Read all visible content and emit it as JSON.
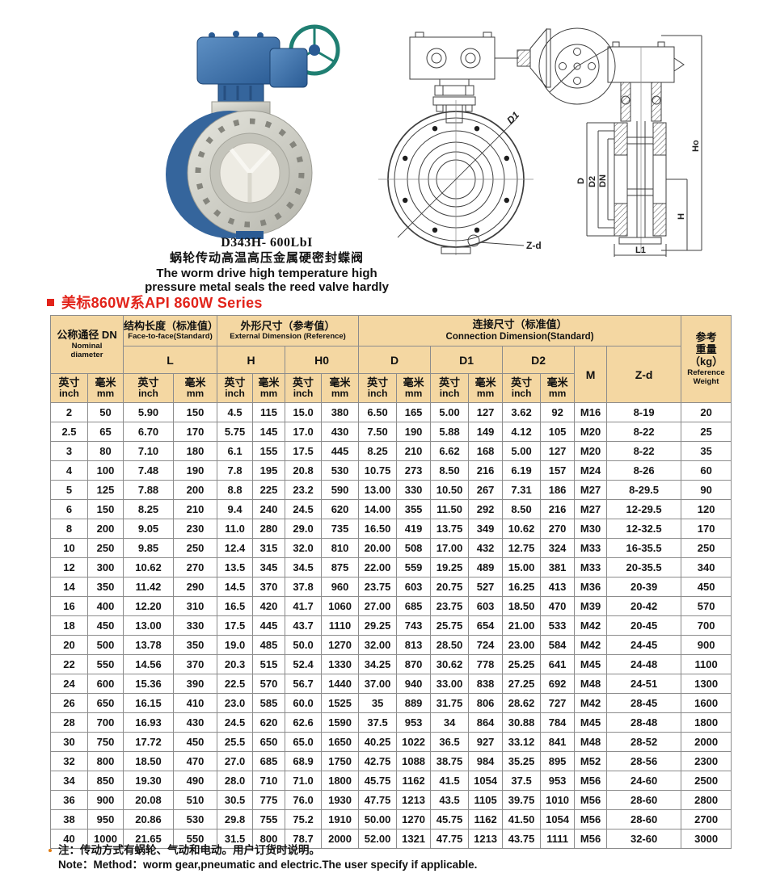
{
  "product": {
    "model": "D343H- 600LbI",
    "name_zh": "蜗轮传动高温高压金属硬密封蝶阀",
    "name_en_line1": "The worm drive high temperature high",
    "name_en_line2": "pressure metal seals the reed valve hardly"
  },
  "series": {
    "title": "美标860W系API 860W Series",
    "accent_color": "#e2231a"
  },
  "drawings": {
    "front_view_labels": {
      "d1": "D1",
      "zd": "Z-d"
    },
    "side_view_labels": {
      "d": "D",
      "d2": "D2",
      "dn": "DN",
      "ho": "Ho",
      "h": "H",
      "l1": "L1"
    }
  },
  "table": {
    "header_bg": "#f4d7a2",
    "nominal": {
      "zh": "公称通径 DN",
      "en1": "Nominal",
      "en2": "diameter"
    },
    "face_to_face": {
      "zh": "结构长度（标准值）",
      "en": "Face-to-face(Standard)"
    },
    "external": {
      "zh": "外形尺寸（参考值）",
      "en": "External Dimension (Reference)"
    },
    "connection": {
      "zh": "连接尺寸（标准值）",
      "en": "Connection Dimension(Standard)"
    },
    "weight": {
      "zh1": "参考",
      "zh2": "重量",
      "kg": "（kg）",
      "en1": "Reference",
      "en2": "Weight"
    },
    "cols": {
      "l": "L",
      "h": "H",
      "h0": "H0",
      "d": "D",
      "d1": "D1",
      "d2": "D2",
      "m": "M",
      "zd": "Z-d"
    },
    "units": {
      "inch_zh": "英寸",
      "inch_en": "inch",
      "mm_zh": "毫米",
      "mm_en": "mm"
    },
    "rows": [
      [
        "2",
        "50",
        "5.90",
        "150",
        "4.5",
        "115",
        "15.0",
        "380",
        "6.50",
        "165",
        "5.00",
        "127",
        "3.62",
        "92",
        "M16",
        "8-19",
        "20"
      ],
      [
        "2.5",
        "65",
        "6.70",
        "170",
        "5.75",
        "145",
        "17.0",
        "430",
        "7.50",
        "190",
        "5.88",
        "149",
        "4.12",
        "105",
        "M20",
        "8-22",
        "25"
      ],
      [
        "3",
        "80",
        "7.10",
        "180",
        "6.1",
        "155",
        "17.5",
        "445",
        "8.25",
        "210",
        "6.62",
        "168",
        "5.00",
        "127",
        "M20",
        "8-22",
        "35"
      ],
      [
        "4",
        "100",
        "7.48",
        "190",
        "7.8",
        "195",
        "20.8",
        "530",
        "10.75",
        "273",
        "8.50",
        "216",
        "6.19",
        "157",
        "M24",
        "8-26",
        "60"
      ],
      [
        "5",
        "125",
        "7.88",
        "200",
        "8.8",
        "225",
        "23.2",
        "590",
        "13.00",
        "330",
        "10.50",
        "267",
        "7.31",
        "186",
        "M27",
        "8-29.5",
        "90"
      ],
      [
        "6",
        "150",
        "8.25",
        "210",
        "9.4",
        "240",
        "24.5",
        "620",
        "14.00",
        "355",
        "11.50",
        "292",
        "8.50",
        "216",
        "M27",
        "12-29.5",
        "120"
      ],
      [
        "8",
        "200",
        "9.05",
        "230",
        "11.0",
        "280",
        "29.0",
        "735",
        "16.50",
        "419",
        "13.75",
        "349",
        "10.62",
        "270",
        "M30",
        "12-32.5",
        "170"
      ],
      [
        "10",
        "250",
        "9.85",
        "250",
        "12.4",
        "315",
        "32.0",
        "810",
        "20.00",
        "508",
        "17.00",
        "432",
        "12.75",
        "324",
        "M33",
        "16-35.5",
        "250"
      ],
      [
        "12",
        "300",
        "10.62",
        "270",
        "13.5",
        "345",
        "34.5",
        "875",
        "22.00",
        "559",
        "19.25",
        "489",
        "15.00",
        "381",
        "M33",
        "20-35.5",
        "340"
      ],
      [
        "14",
        "350",
        "11.42",
        "290",
        "14.5",
        "370",
        "37.8",
        "960",
        "23.75",
        "603",
        "20.75",
        "527",
        "16.25",
        "413",
        "M36",
        "20-39",
        "450"
      ],
      [
        "16",
        "400",
        "12.20",
        "310",
        "16.5",
        "420",
        "41.7",
        "1060",
        "27.00",
        "685",
        "23.75",
        "603",
        "18.50",
        "470",
        "M39",
        "20-42",
        "570"
      ],
      [
        "18",
        "450",
        "13.00",
        "330",
        "17.5",
        "445",
        "43.7",
        "1110",
        "29.25",
        "743",
        "25.75",
        "654",
        "21.00",
        "533",
        "M42",
        "20-45",
        "700"
      ],
      [
        "20",
        "500",
        "13.78",
        "350",
        "19.0",
        "485",
        "50.0",
        "1270",
        "32.00",
        "813",
        "28.50",
        "724",
        "23.00",
        "584",
        "M42",
        "24-45",
        "900"
      ],
      [
        "22",
        "550",
        "14.56",
        "370",
        "20.3",
        "515",
        "52.4",
        "1330",
        "34.25",
        "870",
        "30.62",
        "778",
        "25.25",
        "641",
        "M45",
        "24-48",
        "1100"
      ],
      [
        "24",
        "600",
        "15.36",
        "390",
        "22.5",
        "570",
        "56.7",
        "1440",
        "37.00",
        "940",
        "33.00",
        "838",
        "27.25",
        "692",
        "M48",
        "24-51",
        "1300"
      ],
      [
        "26",
        "650",
        "16.15",
        "410",
        "23.0",
        "585",
        "60.0",
        "1525",
        "35",
        "889",
        "31.75",
        "806",
        "28.62",
        "727",
        "M42",
        "28-45",
        "1600"
      ],
      [
        "28",
        "700",
        "16.93",
        "430",
        "24.5",
        "620",
        "62.6",
        "1590",
        "37.5",
        "953",
        "34",
        "864",
        "30.88",
        "784",
        "M45",
        "28-48",
        "1800"
      ],
      [
        "30",
        "750",
        "17.72",
        "450",
        "25.5",
        "650",
        "65.0",
        "1650",
        "40.25",
        "1022",
        "36.5",
        "927",
        "33.12",
        "841",
        "M48",
        "28-52",
        "2000"
      ],
      [
        "32",
        "800",
        "18.50",
        "470",
        "27.0",
        "685",
        "68.9",
        "1750",
        "42.75",
        "1088",
        "38.75",
        "984",
        "35.25",
        "895",
        "M52",
        "28-56",
        "2300"
      ],
      [
        "34",
        "850",
        "19.30",
        "490",
        "28.0",
        "710",
        "71.0",
        "1800",
        "45.75",
        "1162",
        "41.5",
        "1054",
        "37.5",
        "953",
        "M56",
        "24-60",
        "2500"
      ],
      [
        "36",
        "900",
        "20.08",
        "510",
        "30.5",
        "775",
        "76.0",
        "1930",
        "47.75",
        "1213",
        "43.5",
        "1105",
        "39.75",
        "1010",
        "M56",
        "28-60",
        "2800"
      ],
      [
        "38",
        "950",
        "20.86",
        "530",
        "29.8",
        "755",
        "75.2",
        "1910",
        "50.00",
        "1270",
        "45.75",
        "1162",
        "41.50",
        "1054",
        "M56",
        "28-60",
        "2700"
      ],
      [
        "40",
        "1000",
        "21.65",
        "550",
        "31.5",
        "800",
        "78.7",
        "2000",
        "52.00",
        "1321",
        "47.75",
        "1213",
        "43.75",
        "1111",
        "M56",
        "32-60",
        "3000"
      ]
    ]
  },
  "note": {
    "line1": "注：传动方式有蜗轮、气动和电动。用户订货时说明。",
    "line2": "Note：Method：worm gear,pneumatic and electric.The user specify if applicable."
  }
}
